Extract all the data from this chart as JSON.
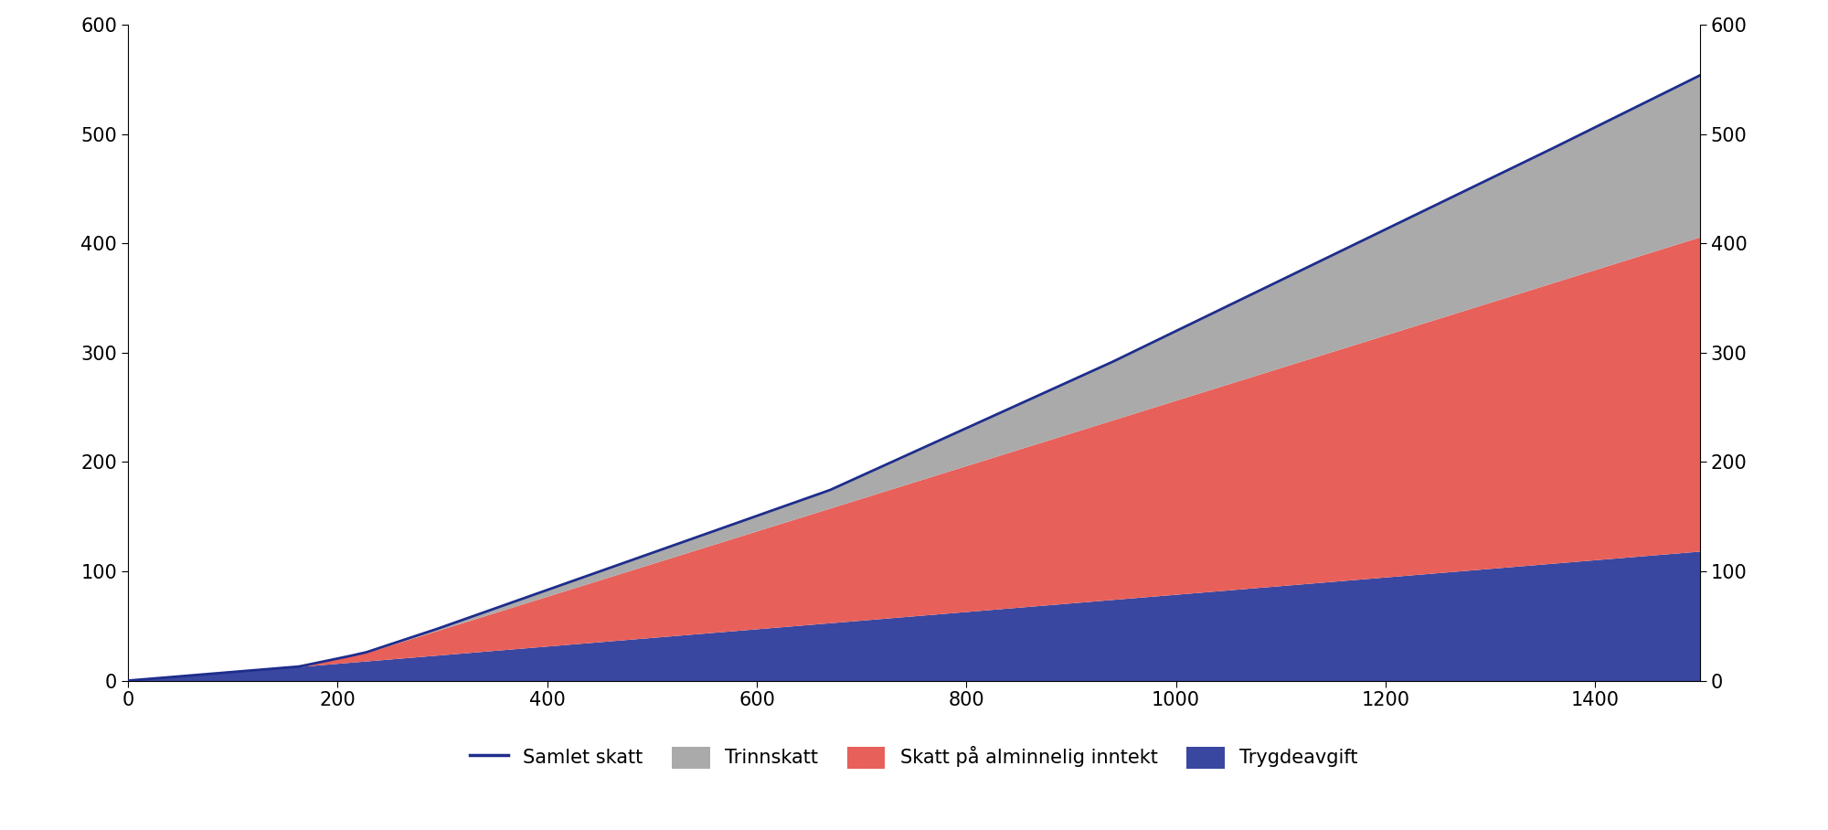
{
  "ylim": [
    0,
    600
  ],
  "xlim": [
    0,
    1500
  ],
  "yticks": [
    0,
    100,
    200,
    300,
    400,
    500,
    600
  ],
  "xticks": [
    0,
    200,
    400,
    600,
    800,
    1000,
    1200,
    1400
  ],
  "color_trygd": "#3a47a0",
  "color_alm": "#e8605a",
  "color_trinn": "#aaaaaa",
  "color_line": "#1e2d8c",
  "legend_labels": [
    "Samlet skatt",
    "Trinnskatt",
    "Skatt på alminnelig inntekt",
    "Trygdeavgift"
  ],
  "background_color": "#ffffff",
  "figsize": [
    20.0,
    9.08
  ]
}
